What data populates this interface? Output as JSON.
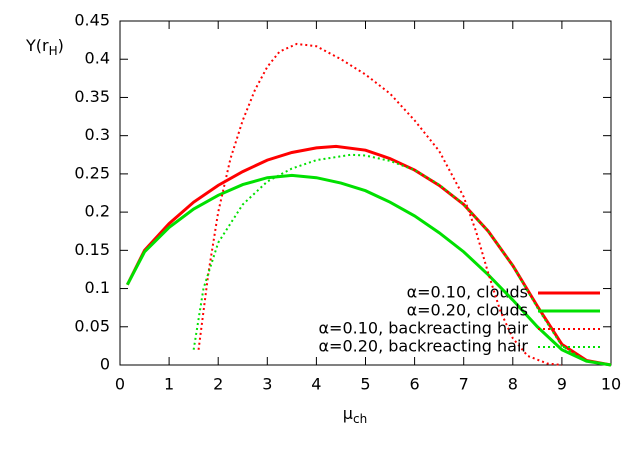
{
  "chart_data": {
    "type": "line",
    "xlabel": [
      "μ",
      "ch"
    ],
    "ylabel": [
      "Y(r",
      "H",
      ")"
    ],
    "xlim": [
      0,
      10
    ],
    "xticks": [
      0,
      1,
      2,
      3,
      4,
      5,
      6,
      7,
      8,
      9,
      10
    ],
    "ylim": [
      0,
      0.45
    ],
    "yticks": [
      0,
      0.05,
      0.1,
      0.15,
      0.2,
      0.25,
      0.3,
      0.35,
      0.4,
      0.45
    ],
    "legend": "lower-right",
    "series": [
      {
        "name": "α=0.10, clouds",
        "color": "#ff0000",
        "style": "solid",
        "x": [
          0.15,
          0.5,
          1,
          1.5,
          2,
          2.5,
          3,
          3.5,
          4,
          4.4,
          5,
          5.5,
          6,
          6.5,
          7,
          7.5,
          8,
          8.5,
          9,
          9.5,
          10
        ],
        "values": [
          0.105,
          0.15,
          0.185,
          0.213,
          0.235,
          0.253,
          0.268,
          0.278,
          0.284,
          0.286,
          0.281,
          0.27,
          0.255,
          0.235,
          0.21,
          0.175,
          0.13,
          0.077,
          0.027,
          0.006,
          0.0
        ]
      },
      {
        "name": "α=0.20, clouds",
        "color": "#00e000",
        "style": "solid",
        "x": [
          0.15,
          0.5,
          1,
          1.5,
          2,
          2.5,
          3,
          3.5,
          4,
          4.5,
          5,
          5.5,
          6,
          6.5,
          7,
          7.5,
          8,
          8.5,
          9,
          9.5,
          10
        ],
        "values": [
          0.105,
          0.148,
          0.18,
          0.204,
          0.222,
          0.236,
          0.245,
          0.248,
          0.245,
          0.238,
          0.228,
          0.213,
          0.195,
          0.173,
          0.148,
          0.118,
          0.085,
          0.05,
          0.02,
          0.005,
          0.0
        ]
      },
      {
        "name": "α=0.10, backreacting hair",
        "color": "#ff0000",
        "style": "dotted",
        "x": [
          1.6,
          1.7,
          1.8,
          2,
          2.25,
          2.5,
          2.75,
          3,
          3.25,
          3.6,
          4,
          4.5,
          5,
          5.5,
          6,
          6.5,
          7,
          7.25,
          7.5,
          7.75,
          8,
          8.3,
          8.7,
          9
        ],
        "values": [
          0.02,
          0.07,
          0.12,
          0.2,
          0.27,
          0.32,
          0.36,
          0.39,
          0.41,
          0.42,
          0.417,
          0.4,
          0.38,
          0.355,
          0.32,
          0.28,
          0.22,
          0.175,
          0.12,
          0.07,
          0.035,
          0.012,
          0.002,
          0.0
        ]
      },
      {
        "name": "α=0.20, backreacting hair",
        "color": "#00e000",
        "style": "dotted",
        "x": [
          1.5,
          1.6,
          1.7,
          2,
          2.5,
          3,
          3.5,
          4,
          4.7,
          5,
          5.5,
          6,
          6.5,
          7,
          7.5,
          8,
          8.5,
          9,
          9.5,
          10
        ],
        "values": [
          0.02,
          0.06,
          0.1,
          0.16,
          0.21,
          0.24,
          0.257,
          0.268,
          0.275,
          0.274,
          0.267,
          0.255,
          0.236,
          0.21,
          0.175,
          0.13,
          0.075,
          0.025,
          0.005,
          0.0
        ]
      }
    ]
  }
}
